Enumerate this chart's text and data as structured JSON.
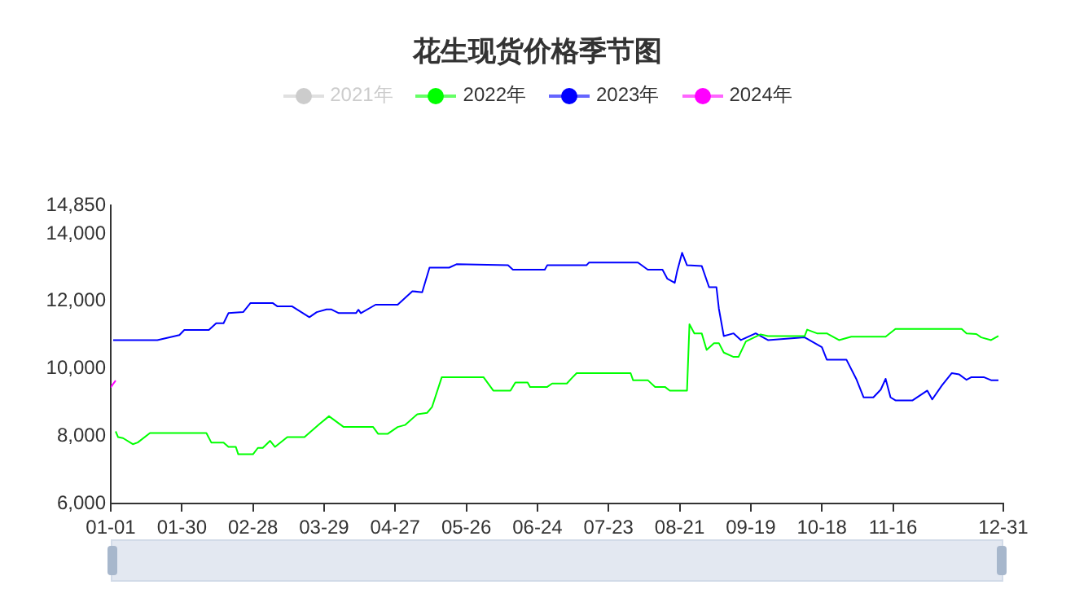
{
  "chart_data": {
    "type": "line",
    "title": "花生现货价格季节图",
    "legend": "top",
    "marker": "none",
    "grid": false,
    "xlim": [
      "--01-01",
      "--12-31"
    ],
    "xticks": [
      {
        "value": "--01-01",
        "label": "01-01"
      },
      {
        "value": "--01-30",
        "label": "01-30"
      },
      {
        "value": "--02-28",
        "label": "02-28"
      },
      {
        "value": "--03-29",
        "label": "03-29"
      },
      {
        "value": "--04-27",
        "label": "04-27"
      },
      {
        "value": "--05-26",
        "label": "05-26"
      },
      {
        "value": "--06-24",
        "label": "06-24"
      },
      {
        "value": "--07-23",
        "label": "07-23"
      },
      {
        "value": "--08-21",
        "label": "08-21"
      },
      {
        "value": "--09-19",
        "label": "09-19"
      },
      {
        "value": "--10-18",
        "label": "10-18"
      },
      {
        "value": "--11-16",
        "label": "11-16"
      },
      {
        "value": "--12-31",
        "label": "12-31"
      }
    ],
    "ylim": [
      6000,
      14850
    ],
    "yticks": [
      {
        "value": 6000,
        "label": "6,000"
      },
      {
        "value": 8000,
        "label": "8,000"
      },
      {
        "value": 10000,
        "label": "10,000"
      },
      {
        "value": 12000,
        "label": "12,000"
      },
      {
        "value": 14000,
        "label": "14,000"
      },
      {
        "value": 14850,
        "label": "14,850"
      }
    ],
    "series": [
      {
        "name": "2021年",
        "color": "#cccccc"
      },
      {
        "name": "2022年",
        "color": "#00ff00",
        "x": [
          "--01-03",
          "--01-04",
          "--01-06",
          "--01-10",
          "--01-12",
          "--01-17",
          "--02-09",
          "--02-11",
          "--02-16",
          "--02-18",
          "--02-21",
          "--02-22",
          "--02-28",
          "--03-02",
          "--03-04",
          "--03-07",
          "--03-09",
          "--03-14",
          "--03-21",
          "--03-27",
          "--03-31",
          "--04-06",
          "--04-18",
          "--04-20",
          "--04-24",
          "--04-28",
          "--05-01",
          "--05-06",
          "--05-10",
          "--05-12",
          "--05-16",
          "--06-02",
          "--06-06",
          "--06-13",
          "--06-15",
          "--06-20",
          "--06-21",
          "--06-28",
          "--06-30",
          "--07-06",
          "--07-08",
          "--07-10",
          "--08-01",
          "--08-02",
          "--08-08",
          "--08-11",
          "--08-15",
          "--08-17",
          "--08-24",
          "--08-25",
          "--08-27",
          "--08-30",
          "--09-01",
          "--09-04",
          "--09-06",
          "--09-08",
          "--09-12",
          "--09-14",
          "--09-17",
          "--09-23",
          "--09-26",
          "--10-11",
          "--10-12",
          "--10-16",
          "--10-20",
          "--10-25",
          "--10-30",
          "--11-13",
          "--11-17",
          "--12-14",
          "--12-16",
          "--12-20",
          "--12-22",
          "--12-26",
          "--12-29"
        ],
        "values": [
          8140,
          7970,
          7940,
          7760,
          7810,
          8090,
          8090,
          7810,
          7810,
          7680,
          7680,
          7460,
          7460,
          7650,
          7650,
          7860,
          7680,
          7970,
          7970,
          8350,
          8590,
          8270,
          8270,
          8070,
          8070,
          8270,
          8330,
          8650,
          8690,
          8860,
          9750,
          9750,
          9350,
          9350,
          9590,
          9590,
          9460,
          9460,
          9560,
          9560,
          9720,
          9870,
          9870,
          9660,
          9660,
          9460,
          9460,
          9350,
          9350,
          11320,
          11050,
          11050,
          10560,
          10760,
          10760,
          10480,
          10350,
          10350,
          10810,
          11020,
          10970,
          10970,
          11160,
          11050,
          11050,
          10850,
          10950,
          10950,
          11180,
          11180,
          11050,
          11030,
          10930,
          10850,
          10970
        ]
      },
      {
        "name": "2023年",
        "color": "#0000ff",
        "x": [
          "--01-02",
          "--01-20",
          "--01-29",
          "--01-31",
          "--02-10",
          "--02-13",
          "--02-16",
          "--02-18",
          "--02-24",
          "--02-27",
          "--03-08",
          "--03-10",
          "--03-16",
          "--03-23",
          "--03-26",
          "--03-30",
          "--04-01",
          "--04-04",
          "--04-11",
          "--04-12",
          "--04-13",
          "--04-19",
          "--04-28",
          "--05-04",
          "--05-08",
          "--05-11",
          "--05-19",
          "--05-22",
          "--06-12",
          "--06-14",
          "--06-27",
          "--06-28",
          "--07-14",
          "--07-15",
          "--08-04",
          "--08-08",
          "--08-14",
          "--08-16",
          "--08-19",
          "--08-20",
          "--08-22",
          "--08-24",
          "--08-30",
          "--09-02",
          "--09-05",
          "--09-06",
          "--09-08",
          "--09-12",
          "--09-15",
          "--09-21",
          "--09-26",
          "--10-11",
          "--10-18",
          "--10-20",
          "--10-28",
          "--11-01",
          "--11-04",
          "--11-08",
          "--11-11",
          "--11-13",
          "--11-15",
          "--11-17",
          "--11-24",
          "--11-30",
          "--12-02",
          "--12-06",
          "--12-10",
          "--12-13",
          "--12-16",
          "--12-18",
          "--12-23",
          "--12-26",
          "--12-29"
        ],
        "values": [
          10850,
          10850,
          11000,
          11150,
          11150,
          11350,
          11350,
          11650,
          11680,
          11950,
          11950,
          11850,
          11850,
          11530,
          11680,
          11760,
          11760,
          11650,
          11650,
          11750,
          11650,
          11900,
          11900,
          12300,
          12270,
          13000,
          13000,
          13100,
          13070,
          12940,
          12940,
          13070,
          13070,
          13150,
          13150,
          12940,
          12940,
          12670,
          12550,
          12900,
          13440,
          13070,
          13050,
          12420,
          12420,
          11780,
          10970,
          11050,
          10850,
          11050,
          10850,
          10930,
          10640,
          10270,
          10270,
          9700,
          9150,
          9150,
          9380,
          9700,
          9150,
          9060,
          9060,
          9350,
          9090,
          9510,
          9870,
          9830,
          9670,
          9750,
          9750,
          9660,
          9660
        ]
      },
      {
        "name": "2024年",
        "color": "#ff00ff",
        "x": [
          "--01-01",
          "--01-02",
          "--01-03"
        ],
        "values": [
          9450,
          9550,
          9650
        ]
      }
    ]
  }
}
